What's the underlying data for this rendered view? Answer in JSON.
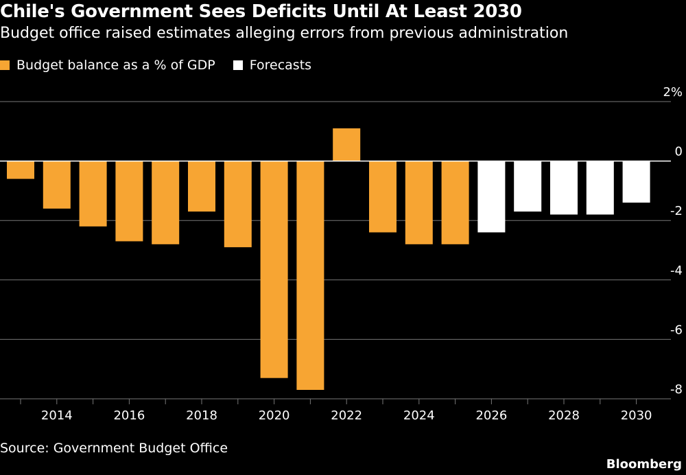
{
  "colors": {
    "actual": "#f7a533",
    "forecast": "#ffffff",
    "grid": "#777777",
    "zero": "#ffffff"
  },
  "chart_data": {
    "type": "bar",
    "title": "Chile's Government Sees Deficits Until At Least 2030",
    "subtitle": "Budget office raised estimates alleging errors from previous administration",
    "legend": [
      {
        "name": "Budget balance as a % of GDP",
        "color": "#f7a533"
      },
      {
        "name": "Forecasts",
        "color": "#ffffff"
      }
    ],
    "legend_placement": "top-left",
    "source": "Source: Government Budget Office",
    "brand": "Bloomberg",
    "x": [
      2013,
      2014,
      2015,
      2016,
      2017,
      2018,
      2019,
      2020,
      2021,
      2022,
      2023,
      2024,
      2025,
      2026,
      2027,
      2028,
      2029,
      2030
    ],
    "values": [
      -0.6,
      -1.6,
      -2.2,
      -2.7,
      -2.8,
      -1.7,
      -2.9,
      -7.3,
      -7.7,
      1.1,
      -2.4,
      -2.8,
      -2.8,
      -2.4,
      -1.7,
      -1.8,
      -1.8,
      -1.4
    ],
    "forecast_from": 2026,
    "x_tick_labels": [
      "2014",
      "2016",
      "2018",
      "2020",
      "2022",
      "2024",
      "2026",
      "2028",
      "2030"
    ],
    "y_ticks": [
      2,
      0,
      -2,
      -4,
      -6,
      -8
    ],
    "y_tick_labels": [
      "2%",
      "0",
      "-2",
      "-4",
      "-6",
      "-8"
    ],
    "ylim": [
      -8,
      2
    ],
    "grid": true,
    "xlabel": "",
    "ylabel": ""
  }
}
